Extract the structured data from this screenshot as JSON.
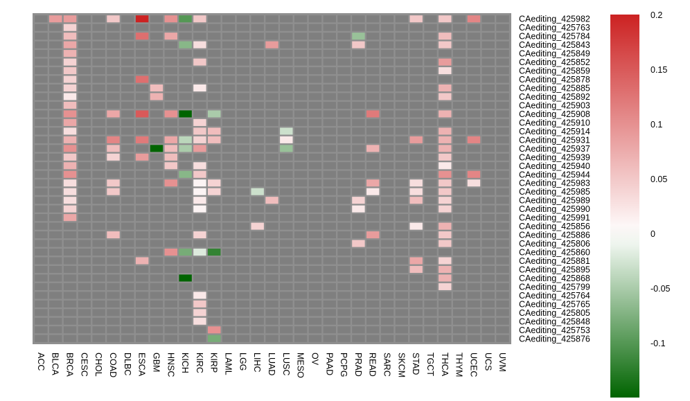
{
  "chart_data": {
    "type": "heatmap",
    "title": "",
    "columns": [
      "ACC",
      "BLCA",
      "BRCA",
      "CESC",
      "CHOL",
      "COAD",
      "DLBC",
      "ESCA",
      "GBM",
      "HNSC",
      "KICH",
      "KIRC",
      "KIRP",
      "LAML",
      "LGG",
      "LIHC",
      "LUAD",
      "LUSC",
      "MESO",
      "OV",
      "PAAD",
      "PCPG",
      "PRAD",
      "READ",
      "SARC",
      "SKCM",
      "STAD",
      "TGCT",
      "THCA",
      "THYM",
      "UCEC",
      "UCS",
      "UVM"
    ],
    "rows": [
      "CAediting_425982",
      "CAediting_425763",
      "CAediting_425784",
      "CAediting_425843",
      "CAediting_425849",
      "CAediting_425852",
      "CAediting_425859",
      "CAediting_425878",
      "CAediting_425885",
      "CAediting_425892",
      "CAediting_425903",
      "CAediting_425908",
      "CAediting_425910",
      "CAediting_425914",
      "CAediting_425931",
      "CAediting_425937",
      "CAediting_425939",
      "CAediting_425940",
      "CAediting_425944",
      "CAediting_425983",
      "CAediting_425985",
      "CAediting_425989",
      "CAediting_425990",
      "CAediting_425991",
      "CAediting_425856",
      "CAediting_425886",
      "CAediting_425806",
      "CAediting_425860",
      "CAediting_425881",
      "CAediting_425895",
      "CAediting_425868",
      "CAediting_425799",
      "CAediting_425764",
      "CAediting_425765",
      "CAediting_425805",
      "CAediting_425848",
      "CAediting_425753",
      "CAediting_425876"
    ],
    "missing_value_color": "#7f7f7f",
    "values_sparse_row_col_value": [
      [
        0,
        1,
        0.09
      ],
      [
        0,
        2,
        0.09
      ],
      [
        0,
        5,
        0.05
      ],
      [
        0,
        7,
        0.2
      ],
      [
        0,
        9,
        0.1
      ],
      [
        0,
        10,
        -0.1
      ],
      [
        0,
        11,
        0.05
      ],
      [
        0,
        26,
        0.05
      ],
      [
        0,
        28,
        0.05
      ],
      [
        0,
        30,
        0.11
      ],
      [
        1,
        2,
        0.04
      ],
      [
        2,
        2,
        0.06
      ],
      [
        2,
        7,
        0.13
      ],
      [
        2,
        9,
        0.08
      ],
      [
        2,
        22,
        -0.06
      ],
      [
        2,
        28,
        0.06
      ],
      [
        3,
        2,
        0.08
      ],
      [
        3,
        10,
        -0.07
      ],
      [
        3,
        11,
        0.03
      ],
      [
        3,
        16,
        0.09
      ],
      [
        3,
        22,
        0.05
      ],
      [
        3,
        28,
        0.05
      ],
      [
        4,
        2,
        0.07
      ],
      [
        5,
        2,
        0.04
      ],
      [
        5,
        11,
        0.05
      ],
      [
        5,
        28,
        0.09
      ],
      [
        6,
        2,
        0.05
      ],
      [
        6,
        28,
        0.03
      ],
      [
        7,
        2,
        0.04
      ],
      [
        7,
        7,
        0.13
      ],
      [
        8,
        2,
        0.04
      ],
      [
        8,
        8,
        0.06
      ],
      [
        8,
        11,
        0.02
      ],
      [
        8,
        28,
        0.07
      ],
      [
        9,
        2,
        0.02
      ],
      [
        9,
        8,
        0.07
      ],
      [
        9,
        28,
        0.05
      ],
      [
        10,
        2,
        0.06
      ],
      [
        11,
        2,
        0.1
      ],
      [
        11,
        5,
        0.08
      ],
      [
        11,
        7,
        0.15
      ],
      [
        11,
        9,
        0.1
      ],
      [
        11,
        10,
        -0.15
      ],
      [
        11,
        12,
        -0.05
      ],
      [
        11,
        23,
        0.12
      ],
      [
        11,
        28,
        0.07
      ],
      [
        12,
        2,
        0.08
      ],
      [
        12,
        11,
        0.04
      ],
      [
        13,
        2,
        0.03
      ],
      [
        13,
        11,
        0.05
      ],
      [
        13,
        12,
        0.06
      ],
      [
        13,
        17,
        -0.03
      ],
      [
        13,
        28,
        0.07
      ],
      [
        14,
        2,
        0.07
      ],
      [
        14,
        5,
        0.11
      ],
      [
        14,
        7,
        0.12
      ],
      [
        14,
        9,
        0.08
      ],
      [
        14,
        10,
        -0.04
      ],
      [
        14,
        11,
        0.04
      ],
      [
        14,
        12,
        0.06
      ],
      [
        14,
        17,
        0.02
      ],
      [
        14,
        26,
        0.09
      ],
      [
        14,
        28,
        0.07
      ],
      [
        14,
        30,
        0.11
      ],
      [
        15,
        2,
        0.1
      ],
      [
        15,
        5,
        0.06
      ],
      [
        15,
        8,
        -0.15
      ],
      [
        15,
        9,
        0.06
      ],
      [
        15,
        10,
        -0.05
      ],
      [
        15,
        11,
        0.09
      ],
      [
        15,
        17,
        -0.06
      ],
      [
        15,
        23,
        0.07
      ],
      [
        15,
        28,
        0.07
      ],
      [
        16,
        2,
        0.05
      ],
      [
        16,
        5,
        0.04
      ],
      [
        16,
        7,
        0.09
      ],
      [
        16,
        9,
        0.06
      ],
      [
        16,
        28,
        0.05
      ],
      [
        17,
        2,
        0.07
      ],
      [
        17,
        9,
        0.05
      ],
      [
        17,
        11,
        0.03
      ],
      [
        17,
        28,
        0.02
      ],
      [
        18,
        2,
        0.1
      ],
      [
        18,
        10,
        -0.07
      ],
      [
        18,
        11,
        0.05
      ],
      [
        18,
        28,
        0.1
      ],
      [
        18,
        30,
        0.11
      ],
      [
        19,
        2,
        0.03
      ],
      [
        19,
        5,
        0.05
      ],
      [
        19,
        9,
        0.1
      ],
      [
        19,
        11,
        0.01
      ],
      [
        19,
        12,
        0.04
      ],
      [
        19,
        23,
        0.08
      ],
      [
        19,
        26,
        0.03
      ],
      [
        19,
        28,
        0.05
      ],
      [
        19,
        30,
        0.03
      ],
      [
        20,
        2,
        0.03
      ],
      [
        20,
        5,
        0.05
      ],
      [
        20,
        11,
        0.01
      ],
      [
        20,
        12,
        0.04
      ],
      [
        20,
        15,
        -0.03
      ],
      [
        20,
        23,
        0.02
      ],
      [
        20,
        26,
        0.03
      ],
      [
        20,
        28,
        0.05
      ],
      [
        21,
        2,
        0.03
      ],
      [
        21,
        11,
        0.02
      ],
      [
        21,
        16,
        0.06
      ],
      [
        21,
        22,
        0.04
      ],
      [
        21,
        26,
        0.06
      ],
      [
        21,
        28,
        0.04
      ],
      [
        22,
        2,
        0.04
      ],
      [
        22,
        11,
        0.01
      ],
      [
        22,
        22,
        0.02
      ],
      [
        22,
        28,
        0.04
      ],
      [
        23,
        2,
        0.08
      ],
      [
        24,
        15,
        0.04
      ],
      [
        24,
        26,
        0.02
      ],
      [
        24,
        28,
        0.07
      ],
      [
        25,
        5,
        0.06
      ],
      [
        25,
        11,
        0.04
      ],
      [
        25,
        23,
        0.09
      ],
      [
        25,
        28,
        0.05
      ],
      [
        26,
        22,
        0.05
      ],
      [
        26,
        28,
        0.05
      ],
      [
        27,
        9,
        0.1
      ],
      [
        27,
        10,
        -0.08
      ],
      [
        27,
        11,
        -0.02
      ],
      [
        27,
        12,
        -0.12
      ],
      [
        28,
        7,
        0.07
      ],
      [
        28,
        26,
        0.08
      ],
      [
        28,
        28,
        0.04
      ],
      [
        29,
        26,
        0.06
      ],
      [
        29,
        28,
        0.07
      ],
      [
        30,
        10,
        -0.15
      ],
      [
        30,
        28,
        0.07
      ],
      [
        31,
        28,
        0.04
      ],
      [
        32,
        11,
        0.02
      ],
      [
        33,
        11,
        0.05
      ],
      [
        34,
        11,
        0.04
      ],
      [
        35,
        11,
        0.03
      ],
      [
        36,
        12,
        0.1
      ],
      [
        37,
        12,
        -0.08
      ]
    ],
    "colorbar": {
      "range": [
        -0.15,
        0.2
      ],
      "ticks": [
        "0.2",
        "0.15",
        "0.1",
        "0.05",
        "0",
        "-0.05",
        "-0.1"
      ],
      "tick_values": [
        0.2,
        0.15,
        0.1,
        0.05,
        0,
        -0.05,
        -0.1
      ],
      "colors": {
        "high": "#cc2222",
        "mid": "#ffffff",
        "low": "#006400"
      },
      "placement": "right"
    }
  }
}
